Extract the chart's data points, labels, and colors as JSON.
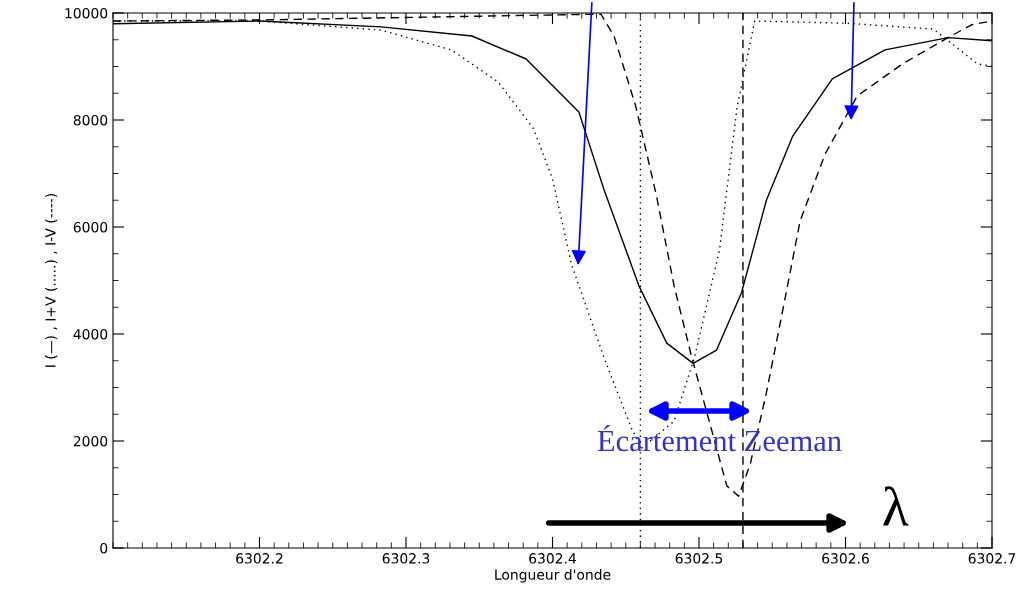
{
  "chart_data": {
    "type": "line",
    "xlabel": "Longueur d'onde",
    "ylabel": "I (—) , I+V (.....) , I-V (----)",
    "xlim": [
      6302.1,
      6302.7
    ],
    "xticks": [
      6302.2,
      6302.3,
      6302.4,
      6302.5,
      6302.6,
      6302.7
    ],
    "ylim": [
      0,
      10000
    ],
    "yticks": [
      0,
      2000,
      4000,
      6000,
      8000,
      10000
    ],
    "grid": false,
    "legend": false,
    "marker": "none",
    "series": [
      {
        "color": "#000000",
        "line_style": "solid",
        "x": [
          6302.1,
          6302.2,
          6302.283,
          6302.345,
          6302.382,
          6302.418,
          6302.435,
          6302.459,
          6302.478,
          6302.496,
          6302.512,
          6302.529,
          6302.546,
          6302.564,
          6302.591,
          6302.627,
          6302.67,
          6302.7
        ],
        "values": [
          9800,
          9850,
          9740,
          9570,
          9140,
          8150,
          6710,
          4900,
          3830,
          3450,
          3700,
          4770,
          6500,
          7700,
          8770,
          9310,
          9540,
          9480
        ]
      },
      {
        "color": "#000000",
        "line_style": "dotted",
        "x": [
          6302.1,
          6302.2,
          6302.283,
          6302.331,
          6302.363,
          6302.387,
          6302.4,
          6302.413,
          6302.435,
          6302.454,
          6302.461,
          6302.483,
          6302.497,
          6302.514,
          6302.526,
          6302.538,
          6302.6,
          6302.66,
          6302.69,
          6302.7
        ],
        "values": [
          9850,
          9850,
          9680,
          9310,
          8710,
          7840,
          6900,
          5300,
          3570,
          2230,
          1870,
          2370,
          3570,
          5570,
          8240,
          9850,
          9810,
          9700,
          9050,
          9000
        ]
      },
      {
        "color": "#000000",
        "line_style": "dashed",
        "x": [
          6302.1,
          6302.2,
          6302.35,
          6302.433,
          6302.442,
          6302.457,
          6302.471,
          6302.483,
          6302.495,
          6302.507,
          6302.519,
          6302.527,
          6302.535,
          6302.546,
          6302.558,
          6302.569,
          6302.586,
          6302.608,
          6302.639,
          6302.67,
          6302.686,
          6302.7
        ],
        "values": [
          9850,
          9870,
          9940,
          9980,
          9570,
          8240,
          6580,
          4900,
          3570,
          2370,
          1160,
          970,
          1570,
          2900,
          4560,
          6110,
          7360,
          8450,
          9050,
          9540,
          9780,
          9850
        ]
      }
    ],
    "ref_lines": [
      {
        "axis": "x",
        "value": 6302.46,
        "color": "#000000",
        "line_style": "dotted"
      },
      {
        "axis": "x",
        "value": 6302.53,
        "color": "#000000",
        "line_style": "dashed"
      }
    ],
    "annotations": [
      "Écartement Zeeman",
      "λ"
    ]
  }
}
